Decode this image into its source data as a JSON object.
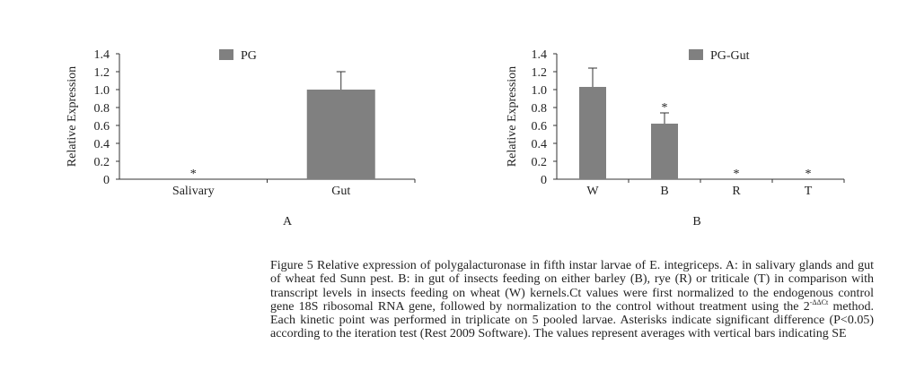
{
  "chart_data": [
    {
      "type": "bar",
      "panel_label": "A",
      "categories": [
        "Salivary",
        "Gut"
      ],
      "values": [
        0,
        1.0
      ],
      "errors": [
        0,
        0.2
      ],
      "significant": [
        true,
        false
      ],
      "legend": "PG",
      "ylabel": "Relative Expression",
      "xlabel": "",
      "ylim": [
        0,
        1.4
      ],
      "yticks": [
        "0",
        "0.2",
        "0.4",
        "0.6",
        "0.8",
        "1.0",
        "1.2",
        "1.4"
      ],
      "color": "#808080",
      "legend_position": "top-left"
    },
    {
      "type": "bar",
      "panel_label": "B",
      "categories": [
        "W",
        "B",
        "R",
        "T"
      ],
      "values": [
        1.03,
        0.62,
        0,
        0
      ],
      "errors": [
        0.21,
        0.12,
        0,
        0
      ],
      "significant": [
        false,
        true,
        true,
        true
      ],
      "legend": "PG-Gut",
      "ylabel": "Relative Expression",
      "xlabel": "",
      "ylim": [
        0,
        1.4
      ],
      "yticks": [
        "0",
        "0.2",
        "0.4",
        "0.6",
        "0.8",
        "1.0",
        "1.2",
        "1.4"
      ],
      "color": "#808080",
      "legend_position": "top-left"
    }
  ],
  "significance_marker": "*",
  "caption": {
    "part1": "Figure 5 Relative expression of polygalacturonase in fifth instar larvae of E. integriceps. A: in salivary glands and gut of wheat fed Sunn pest. B: in gut of insects feeding on either barley (B), rye (R) or triticale (T) in comparison with transcript levels in insects feeding on wheat (W) kernels.Ct values were first normalized to the endogenous control gene 18S ribosomal RNA gene, followed by normalization to the control without treatment using the 2",
    "superscript": "-ΔΔCt",
    "part2": " method. Each kinetic point was performed in triplicate on 5 pooled larvae. Asterisks indicate significant difference (P<0.05) according to the iteration test (Rest 2009 Software). The values represent averages with vertical bars indicating SE"
  }
}
